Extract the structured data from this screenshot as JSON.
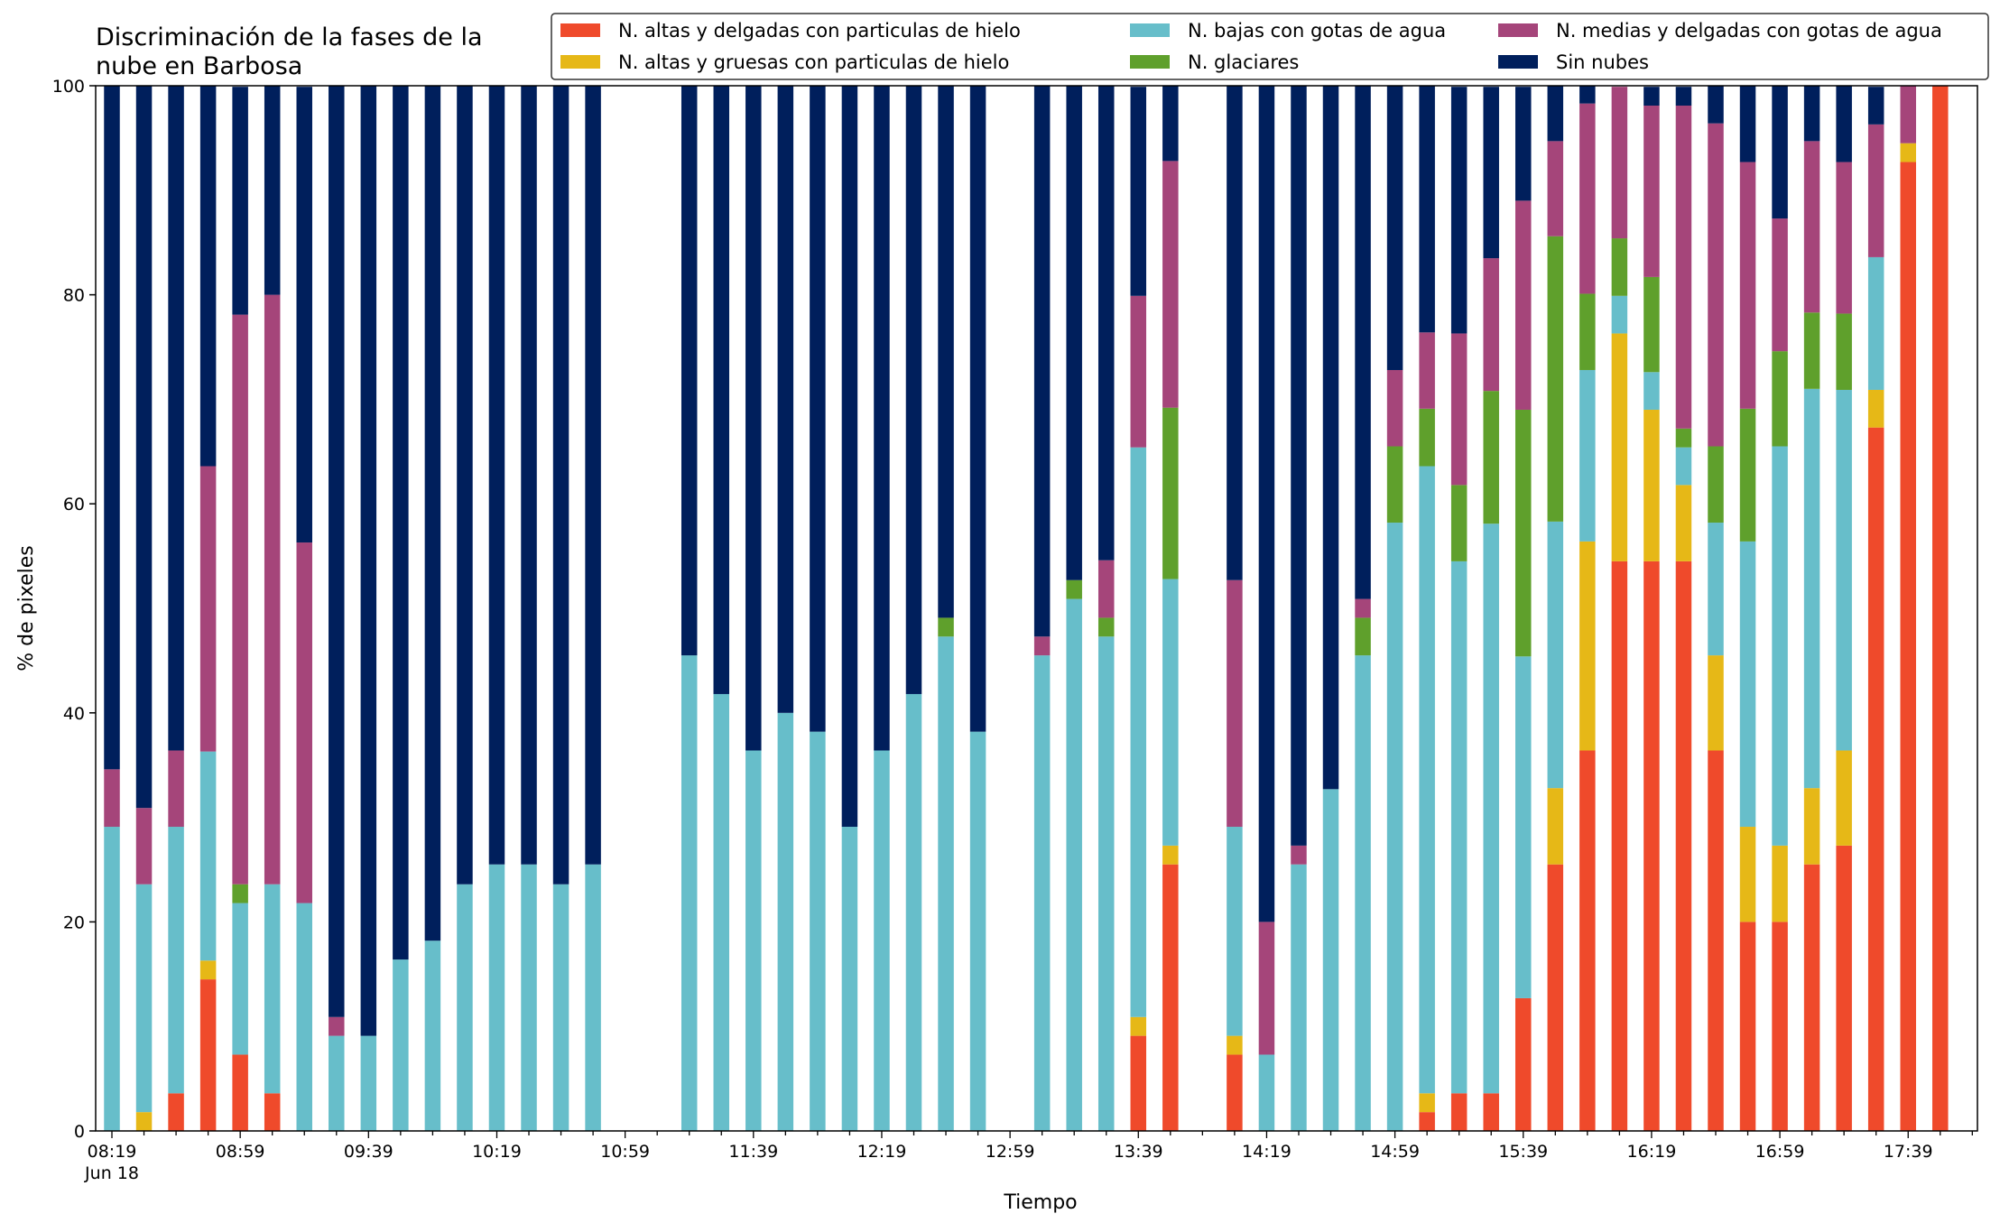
{
  "chart_data": {
    "type": "bar",
    "stacked": true,
    "title": "Discriminación de la fases de la\nnube en Barbosa",
    "xlabel": "Tiempo",
    "ylabel": "% de pixeles",
    "ylim": [
      0,
      100
    ],
    "yticks": [
      0,
      20,
      40,
      60,
      80,
      100
    ],
    "xtick_labels": [
      "08:19\nJun 18",
      "08:59",
      "09:39",
      "10:19",
      "10:59",
      "11:39",
      "12:19",
      "12:59",
      "13:39",
      "14:19",
      "14:59",
      "15:39",
      "16:19",
      "16:59",
      "17:39"
    ],
    "legend_position": "top-right",
    "categories": [
      "08:19",
      "08:29",
      "08:39",
      "08:49",
      "08:59",
      "09:09",
      "09:19",
      "09:29",
      "09:39",
      "09:49",
      "09:59",
      "10:09",
      "10:19",
      "10:29",
      "10:39",
      "10:49",
      "10:59",
      "11:09",
      "11:19",
      "11:29",
      "11:39",
      "11:49",
      "11:59",
      "12:09",
      "12:19",
      "12:29",
      "12:39",
      "12:49",
      "12:59",
      "13:09",
      "13:19",
      "13:29",
      "13:39",
      "13:49",
      "13:59",
      "14:09",
      "14:19",
      "14:29",
      "14:39",
      "14:49",
      "14:59",
      "15:09",
      "15:19",
      "15:29",
      "15:39",
      "15:49",
      "15:59",
      "16:09",
      "16:19",
      "16:29",
      "16:39",
      "16:49",
      "16:59",
      "17:09",
      "17:19",
      "17:29",
      "17:39",
      "17:49"
    ],
    "series": [
      {
        "name": "N. altas y delgadas con particulas de hielo",
        "color": "#EF4A2B",
        "values": [
          0,
          0,
          3.6,
          14.5,
          7.3,
          3.6,
          0,
          0,
          0,
          0,
          0,
          0,
          0,
          0,
          0,
          0,
          null,
          null,
          0,
          0,
          0,
          0,
          0,
          0,
          0,
          0,
          0,
          0,
          null,
          0,
          0,
          0,
          9.1,
          25.5,
          null,
          7.3,
          0,
          0,
          0,
          0,
          0,
          1.8,
          3.6,
          3.6,
          12.7,
          25.5,
          36.4,
          54.5,
          54.5,
          54.5,
          36.4,
          20,
          20,
          25.5,
          27.3,
          67.3,
          92.7,
          100
        ]
      },
      {
        "name": "N. altas y gruesas con particulas de hielo",
        "color": "#E6B817",
        "values": [
          0,
          1.8,
          0,
          1.8,
          0,
          0,
          0,
          0,
          0,
          0,
          0,
          0,
          0,
          0,
          0,
          0,
          null,
          null,
          0,
          0,
          0,
          0,
          0,
          0,
          0,
          0,
          0,
          0,
          null,
          0,
          0,
          0,
          1.8,
          1.8,
          null,
          1.8,
          0,
          0,
          0,
          0,
          0,
          1.8,
          0,
          0,
          0,
          7.3,
          20,
          21.8,
          14.5,
          7.3,
          9.1,
          9.1,
          7.3,
          7.3,
          9.1,
          3.6,
          1.8,
          0
        ]
      },
      {
        "name": "N. bajas con gotas de agua",
        "color": "#67BECA",
        "values": [
          29.1,
          21.8,
          25.5,
          20,
          14.5,
          20,
          21.8,
          9.1,
          9.1,
          16.4,
          18.2,
          23.6,
          25.5,
          25.5,
          23.6,
          25.5,
          null,
          null,
          45.5,
          41.8,
          36.4,
          40,
          38.2,
          29.1,
          36.4,
          41.8,
          47.3,
          38.2,
          null,
          45.5,
          50.9,
          47.3,
          54.5,
          25.5,
          null,
          20,
          7.3,
          25.5,
          32.7,
          45.5,
          58.2,
          60,
          50.9,
          54.5,
          32.7,
          25.5,
          16.4,
          3.6,
          3.6,
          3.6,
          12.7,
          27.3,
          38.2,
          38.2,
          34.5,
          12.7,
          0,
          0
        ]
      },
      {
        "name": "N. glaciares",
        "color": "#5FA02C",
        "values": [
          0,
          0,
          0,
          0,
          1.8,
          0,
          0,
          0,
          0,
          0,
          0,
          0,
          0,
          0,
          0,
          0,
          null,
          null,
          0,
          0,
          0,
          0,
          0,
          0,
          0,
          0,
          1.8,
          0,
          null,
          0,
          1.8,
          1.8,
          0,
          16.4,
          null,
          0,
          0,
          0,
          0,
          3.6,
          7.3,
          5.5,
          7.3,
          12.7,
          23.6,
          27.3,
          7.3,
          5.5,
          9.1,
          1.8,
          7.3,
          12.7,
          9.1,
          7.3,
          7.3,
          0,
          0,
          0
        ]
      },
      {
        "name": "N. medias y delgadas con gotas de agua",
        "color": "#A5457A",
        "values": [
          5.5,
          7.3,
          7.3,
          27.3,
          54.5,
          56.4,
          34.5,
          1.8,
          0,
          0,
          0,
          0,
          0,
          0,
          0,
          0,
          null,
          null,
          0,
          0,
          0,
          0,
          0,
          0,
          0,
          0,
          0,
          0,
          null,
          1.8,
          0,
          5.5,
          14.5,
          23.6,
          null,
          23.6,
          12.7,
          1.8,
          0,
          1.8,
          7.3,
          7.3,
          14.5,
          12.7,
          20,
          9.1,
          18.2,
          14.5,
          16.4,
          30.9,
          30.9,
          23.6,
          12.7,
          16.4,
          14.5,
          12.7,
          5.5,
          0
        ]
      },
      {
        "name": "Sin nubes",
        "color": "#001F5C",
        "values": [
          65.5,
          69.1,
          63.6,
          36.4,
          21.8,
          20,
          43.6,
          89.1,
          90.9,
          83.6,
          81.8,
          76.4,
          74.5,
          74.5,
          76.4,
          74.5,
          null,
          null,
          54.5,
          58.2,
          63.6,
          60,
          61.8,
          70.9,
          63.6,
          58.2,
          50.9,
          61.8,
          null,
          52.7,
          47.3,
          45.5,
          20,
          7.3,
          null,
          47.3,
          80,
          72.7,
          67.3,
          49.1,
          27.3,
          23.6,
          23.6,
          16.4,
          10.9,
          5.5,
          1.8,
          0,
          1.8,
          1.8,
          3.6,
          7.3,
          12.7,
          5.5,
          7.3,
          3.6,
          0,
          0
        ]
      }
    ]
  }
}
